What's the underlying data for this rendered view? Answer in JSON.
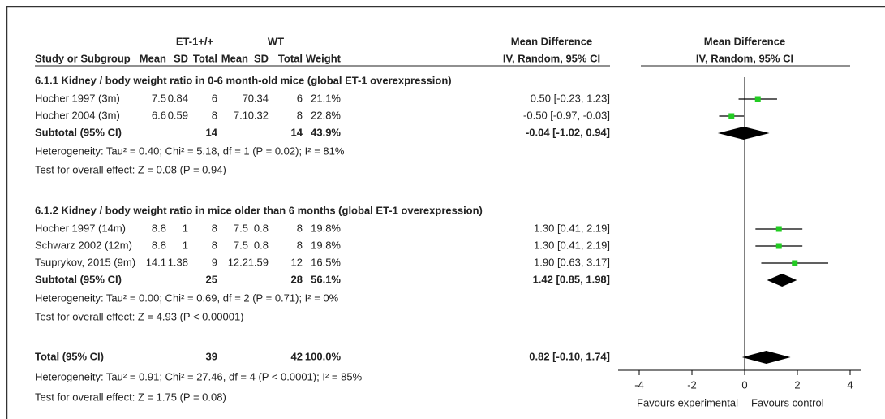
{
  "chart_data": {
    "type": "forest",
    "group_headers": {
      "experimental": "ET-1+/+",
      "control": "WT",
      "md_table": "Mean Difference",
      "md_plot": "Mean Difference"
    },
    "columns": [
      "Study or Subgroup",
      "Mean",
      "SD",
      "Total",
      "Mean",
      "SD",
      "Total",
      "Weight",
      "IV, Random, 95% CI",
      "IV, Random, 95% CI"
    ],
    "subgroups": [
      {
        "title": "6.1.1 Kidney / body weight ratio in 0-6 month-old mice (global ET-1 overexpression)",
        "studies": [
          {
            "name": "Hocher 1997 (3m)",
            "exp": [
              7.5,
              0.84,
              6
            ],
            "ctl": [
              7,
              0.34,
              6
            ],
            "weight": "21.1%",
            "md": 0.5,
            "ci": [
              -0.23,
              1.23
            ],
            "md_label": "0.50 [-0.23, 1.23]"
          },
          {
            "name": "Hocher 2004 (3m)",
            "exp": [
              6.6,
              0.59,
              8
            ],
            "ctl": [
              7.1,
              0.32,
              8
            ],
            "weight": "22.8%",
            "md": -0.5,
            "ci": [
              -0.97,
              -0.03
            ],
            "md_label": "-0.50 [-0.97, -0.03]"
          }
        ],
        "subtotal": {
          "name": "Subtotal (95% CI)",
          "exp_total": 14,
          "ctl_total": 14,
          "weight": "43.9%",
          "md": -0.04,
          "ci": [
            -1.02,
            0.94
          ],
          "md_label": "-0.04 [-1.02, 0.94]"
        },
        "heterogeneity": "Heterogeneity: Tau² = 0.40; Chi² = 5.18, df = 1 (P = 0.02); I² = 81%",
        "overall_effect": "Test for overall effect: Z = 0.08 (P = 0.94)"
      },
      {
        "title": "6.1.2 Kidney / body weight ratio in mice older than 6 months (global ET-1 overexpression)",
        "studies": [
          {
            "name": "Hocher 1997 (14m)",
            "exp": [
              8.8,
              1,
              8
            ],
            "ctl": [
              7.5,
              0.8,
              8
            ],
            "weight": "19.8%",
            "md": 1.3,
            "ci": [
              0.41,
              2.19
            ],
            "md_label": "1.30 [0.41, 2.19]"
          },
          {
            "name": "Schwarz 2002 (12m)",
            "exp": [
              8.8,
              1,
              8
            ],
            "ctl": [
              7.5,
              0.8,
              8
            ],
            "weight": "19.8%",
            "md": 1.3,
            "ci": [
              0.41,
              2.19
            ],
            "md_label": "1.30 [0.41, 2.19]"
          },
          {
            "name": "Tsuprykov, 2015 (9m)",
            "exp": [
              14.1,
              1.38,
              9
            ],
            "ctl": [
              12.2,
              1.59,
              12
            ],
            "weight": "16.5%",
            "md": 1.9,
            "ci": [
              0.63,
              3.17
            ],
            "md_label": "1.90 [0.63, 3.17]"
          }
        ],
        "subtotal": {
          "name": "Subtotal (95% CI)",
          "exp_total": 25,
          "ctl_total": 28,
          "weight": "56.1%",
          "md": 1.42,
          "ci": [
            0.85,
            1.98
          ],
          "md_label": "1.42 [0.85, 1.98]"
        },
        "heterogeneity": "Heterogeneity: Tau² = 0.00; Chi² = 0.69, df = 2 (P = 0.71); I² = 0%",
        "overall_effect": "Test for overall effect: Z = 4.93 (P < 0.00001)"
      }
    ],
    "total": {
      "name": "Total (95% CI)",
      "exp_total": 39,
      "ctl_total": 42,
      "weight": "100.0%",
      "md": 0.82,
      "ci": [
        -0.1,
        1.74
      ],
      "md_label": "0.82 [-0.10, 1.74]",
      "heterogeneity": "Heterogeneity: Tau² = 0.91; Chi² = 27.46, df = 4 (P < 0.0001); I² = 85%",
      "overall_effect": "Test for overall effect: Z = 1.75 (P = 0.08)"
    },
    "xlim": [
      -4.8,
      4.4
    ],
    "xticks": [
      -4,
      -2,
      0,
      2,
      4
    ],
    "xlabel_left": "Favours experimental",
    "xlabel_right": "Favours control",
    "marker_color": "#22cc22"
  }
}
